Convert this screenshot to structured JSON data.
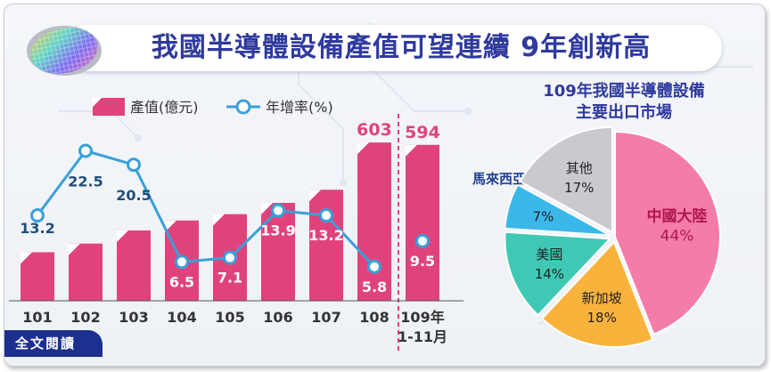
{
  "header": {
    "title": "我國半導體設備產值可望連續 9年創新高",
    "read_more": "全文閱讀"
  },
  "colors": {
    "bar": "#e0437c",
    "line": "#3aa0d8",
    "title": "#2f3a9e",
    "pie_china": "#f47cab",
    "pie_singapore": "#f9b33d",
    "pie_usa": "#3fc9b5",
    "pie_malaysia": "#3bb8ea",
    "pie_other": "#c9c9cf"
  },
  "chart_data": [
    {
      "type": "bar",
      "legend": [
        "產值(億元)",
        "年增率(%)"
      ],
      "categories": [
        "101",
        "102",
        "103",
        "104",
        "105",
        "106",
        "107",
        "108",
        "109年\n1-11月"
      ],
      "series": [
        {
          "name": "產值(億元)",
          "type": "bar",
          "values": [
            185,
            218,
            268,
            306,
            330,
            373,
            423,
            603,
            594
          ],
          "labels": [
            "",
            "",
            "",
            "",
            "",
            "",
            "",
            "603",
            "594"
          ]
        },
        {
          "name": "年增率(%)",
          "type": "line",
          "values": [
            13.2,
            22.5,
            20.5,
            6.5,
            7.1,
            13.9,
            13.2,
            5.8,
            9.5
          ],
          "labels": [
            "13.2",
            "22.5",
            "20.5",
            "6.5",
            "7.1",
            "13.9",
            "13.2",
            "5.8",
            "9.5"
          ]
        }
      ],
      "ylim": [
        0,
        700
      ],
      "y2lim": [
        0,
        30
      ]
    },
    {
      "type": "pie",
      "title": "109年我國半導體設備\n主要出口市場",
      "slices": [
        {
          "label": "中國大陸",
          "value": 44,
          "text": "44%"
        },
        {
          "label": "新加坡",
          "value": 18,
          "text": "18%"
        },
        {
          "label": "美國",
          "value": 14,
          "text": "14%"
        },
        {
          "label": "馬來西亞",
          "value": 7,
          "text": "7%"
        },
        {
          "label": "其他",
          "value": 17,
          "text": "17%"
        }
      ]
    }
  ]
}
